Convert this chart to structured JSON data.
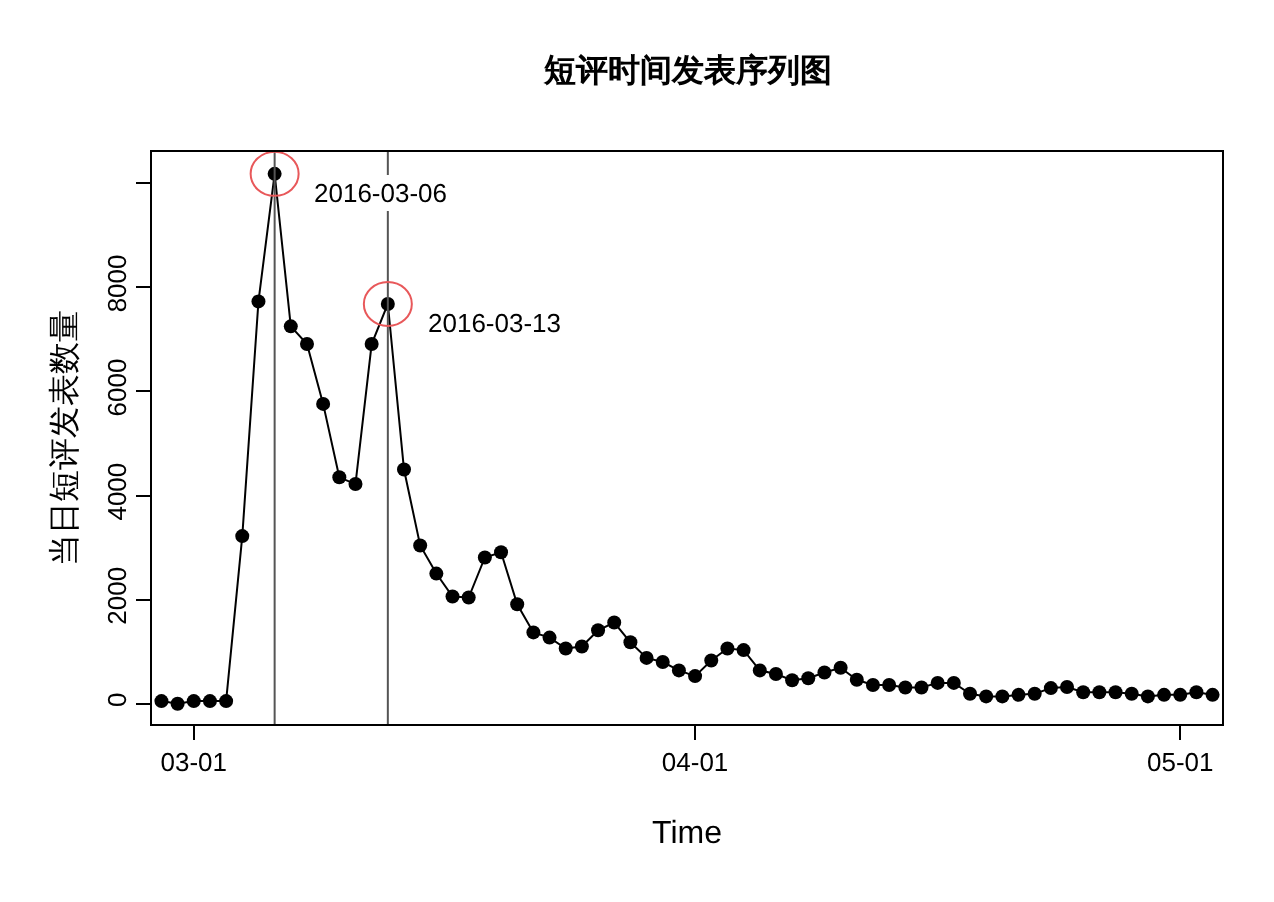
{
  "chart_data": {
    "type": "line",
    "title": "短评时间发表序列图",
    "xlabel": "Time",
    "ylabel": "当日短评发表数量",
    "x": [
      "2016-02-28",
      "2016-02-29",
      "2016-03-01",
      "2016-03-02",
      "2016-03-03",
      "2016-03-04",
      "2016-03-05",
      "2016-03-06",
      "2016-03-07",
      "2016-03-08",
      "2016-03-09",
      "2016-03-10",
      "2016-03-11",
      "2016-03-12",
      "2016-03-13",
      "2016-03-14",
      "2016-03-15",
      "2016-03-16",
      "2016-03-17",
      "2016-03-18",
      "2016-03-19",
      "2016-03-20",
      "2016-03-21",
      "2016-03-22",
      "2016-03-23",
      "2016-03-24",
      "2016-03-25",
      "2016-03-26",
      "2016-03-27",
      "2016-03-28",
      "2016-03-29",
      "2016-03-30",
      "2016-03-31",
      "2016-04-01",
      "2016-04-02",
      "2016-04-03",
      "2016-04-04",
      "2016-04-05",
      "2016-04-06",
      "2016-04-07",
      "2016-04-08",
      "2016-04-09",
      "2016-04-10",
      "2016-04-11",
      "2016-04-12",
      "2016-04-13",
      "2016-04-14",
      "2016-04-15",
      "2016-04-16",
      "2016-04-17",
      "2016-04-18",
      "2016-04-19",
      "2016-04-20",
      "2016-04-21",
      "2016-04-22",
      "2016-04-23",
      "2016-04-24",
      "2016-04-25",
      "2016-04-26",
      "2016-04-27",
      "2016-04-28",
      "2016-04-29",
      "2016-04-30",
      "2016-05-01",
      "2016-05-02",
      "2016-05-03"
    ],
    "series": [
      {
        "color": "#000000",
        "values": [
          50,
          0,
          50,
          50,
          50,
          3220,
          7730,
          10180,
          7250,
          6910,
          5760,
          4350,
          4220,
          6910,
          7680,
          4500,
          3040,
          2500,
          2060,
          2040,
          2810,
          2910,
          1910,
          1370,
          1270,
          1060,
          1100,
          1410,
          1560,
          1180,
          880,
          800,
          640,
          530,
          830,
          1060,
          1030,
          640,
          570,
          450,
          490,
          600,
          690,
          460,
          360,
          360,
          310,
          310,
          400,
          400,
          190,
          140,
          140,
          170,
          190,
          300,
          320,
          220,
          220,
          220,
          190,
          140,
          170,
          170,
          220,
          170
        ]
      }
    ],
    "xlim": [
      "2016-02-27T10:00",
      "2016-05-03T14:00"
    ],
    "xticks": [
      {
        "value": "2016-03-01",
        "label": "03-01"
      },
      {
        "value": "2016-04-01",
        "label": "04-01"
      },
      {
        "value": "2016-05-01",
        "label": "05-01"
      }
    ],
    "ylim": [
      -390,
      10600
    ],
    "yticks": [
      0,
      2000,
      4000,
      6000,
      8000,
      {
        "value": 10000,
        "label": null
      }
    ],
    "marker": "circle",
    "line_style": "solid",
    "grid": false,
    "ref_lines": [
      {
        "axis": "x",
        "value": "2016-03-06",
        "label": null,
        "color": "#555555"
      },
      {
        "axis": "x",
        "value": "2016-03-13",
        "label": null,
        "color": "#555555"
      }
    ],
    "annotations": [
      {
        "text": "2016-03-06",
        "x": "2016-03-06",
        "y": 10180
      },
      {
        "text": "2016-03-13",
        "x": "2016-03-13",
        "y": 7680
      }
    ]
  }
}
